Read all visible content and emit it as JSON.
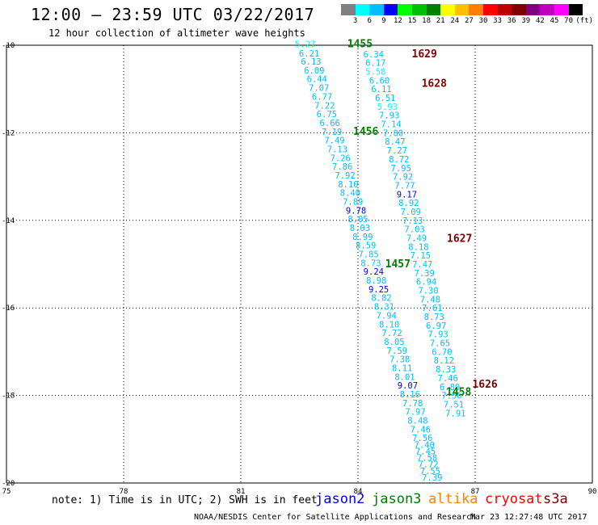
{
  "header": {
    "title": "12:00 – 23:59 UTC 03/22/2017",
    "subtitle": "12 hour collection of altimeter wave heights"
  },
  "colorbar": {
    "unit_label": "(ft)",
    "bins": [
      {
        "label": "3",
        "color": "#808080"
      },
      {
        "label": "6",
        "color": "#00ffff"
      },
      {
        "label": "9",
        "color": "#00bfff"
      },
      {
        "label": "12",
        "color": "#0000ff"
      },
      {
        "label": "15",
        "color": "#00ff00"
      },
      {
        "label": "18",
        "color": "#00bf00"
      },
      {
        "label": "21",
        "color": "#008000"
      },
      {
        "label": "24",
        "color": "#ffff00"
      },
      {
        "label": "27",
        "color": "#ffbf00"
      },
      {
        "label": "30",
        "color": "#ff8000"
      },
      {
        "label": "33",
        "color": "#ff0000"
      },
      {
        "label": "36",
        "color": "#bf0000"
      },
      {
        "label": "39",
        "color": "#800000"
      },
      {
        "label": "42",
        "color": "#800080"
      },
      {
        "label": "45",
        "color": "#bf00bf"
      },
      {
        "label": "70",
        "color": "#ff00ff"
      },
      {
        "label": "",
        "color": "#000000"
      }
    ]
  },
  "note": "note: 1) Time is in UTC; 2) SWH is in feet",
  "satellites": [
    {
      "name": "jason2",
      "color": "#0000ff"
    },
    {
      "name": "jason3",
      "color": "#008000"
    },
    {
      "name": "altika",
      "color": "#ff8000"
    },
    {
      "name": "cryosat",
      "color": "#ff0000"
    },
    {
      "name": "s3a",
      "color": "#800000"
    }
  ],
  "footer": {
    "credit": "NOAA/NESDIS Center for Satellite Applications and Research",
    "timestamp": "Mar 23 12:27:48 UTC 2017"
  },
  "chart_data": {
    "type": "scatter",
    "title": "12:00 – 23:59 UTC 03/22/2017",
    "subtitle": "12 hour collection of altimeter wave heights",
    "xlim": [
      75,
      90
    ],
    "ylim": [
      -20,
      -10
    ],
    "x_ticks": [
      75,
      78,
      81,
      84,
      87,
      90
    ],
    "y_ticks": [
      -10,
      -12,
      -14,
      -16,
      -18,
      -20
    ],
    "grid": true,
    "legend_placement": "bottom",
    "time_labels": [
      {
        "text": "1455",
        "lon": 84.05,
        "lat": -9.97,
        "color": "#008000"
      },
      {
        "text": "1456",
        "lon": 84.2,
        "lat": -11.97,
        "color": "#008000"
      },
      {
        "text": "1457",
        "lon": 85.02,
        "lat": -15.0,
        "color": "#008000"
      },
      {
        "text": "1458",
        "lon": 86.58,
        "lat": -17.92,
        "color": "#008000"
      },
      {
        "text": "1629",
        "lon": 85.7,
        "lat": -10.2,
        "color": "#800000"
      },
      {
        "text": "1628",
        "lon": 85.95,
        "lat": -10.88,
        "color": "#800000"
      },
      {
        "text": "1627",
        "lon": 86.6,
        "lat": -14.42,
        "color": "#800000"
      },
      {
        "text": "1626",
        "lon": 87.25,
        "lat": -17.75,
        "color": "#800000"
      }
    ],
    "series": [
      {
        "name": "jason3",
        "points": [
          {
            "lon": 82.65,
            "lat": -9.97,
            "v": 5.27
          },
          {
            "lon": 82.75,
            "lat": -10.18,
            "v": 6.21
          },
          {
            "lon": 82.8,
            "lat": -10.37,
            "v": 6.13
          },
          {
            "lon": 82.88,
            "lat": -10.57,
            "v": 6.09
          },
          {
            "lon": 82.95,
            "lat": -10.77,
            "v": 6.44
          },
          {
            "lon": 83.0,
            "lat": -10.97,
            "v": 7.07
          },
          {
            "lon": 83.08,
            "lat": -11.17,
            "v": 6.77
          },
          {
            "lon": 83.15,
            "lat": -11.37,
            "v": 7.22
          },
          {
            "lon": 83.2,
            "lat": -11.57,
            "v": 6.75
          },
          {
            "lon": 83.28,
            "lat": -11.77,
            "v": 6.66
          },
          {
            "lon": 83.33,
            "lat": -11.97,
            "v": 7.19
          },
          {
            "lon": 83.4,
            "lat": -12.17,
            "v": 7.49
          },
          {
            "lon": 83.47,
            "lat": -12.37,
            "v": 7.13
          },
          {
            "lon": 83.55,
            "lat": -12.57,
            "v": 7.26
          },
          {
            "lon": 83.6,
            "lat": -12.77,
            "v": 7.86
          },
          {
            "lon": 83.67,
            "lat": -12.97,
            "v": 7.92
          },
          {
            "lon": 83.75,
            "lat": -13.17,
            "v": 8.1
          },
          {
            "lon": 83.8,
            "lat": -13.37,
            "v": 8.4
          },
          {
            "lon": 83.87,
            "lat": -13.57,
            "v": 7.89
          },
          {
            "lon": 83.95,
            "lat": -13.77,
            "v": 9.78
          },
          {
            "lon": 84.0,
            "lat": -13.97,
            "v": 8.05
          },
          {
            "lon": 84.05,
            "lat": -14.17,
            "v": 8.03
          },
          {
            "lon": 84.12,
            "lat": -14.37,
            "v": 8.99
          },
          {
            "lon": 84.2,
            "lat": -14.57,
            "v": 8.59
          },
          {
            "lon": 84.27,
            "lat": -14.77,
            "v": 7.85
          },
          {
            "lon": 84.33,
            "lat": -14.97,
            "v": 8.73
          },
          {
            "lon": 84.4,
            "lat": -15.17,
            "v": 9.24
          },
          {
            "lon": 84.47,
            "lat": -15.37,
            "v": 8.98
          },
          {
            "lon": 84.53,
            "lat": -15.57,
            "v": 9.25
          },
          {
            "lon": 84.6,
            "lat": -15.77,
            "v": 8.82
          },
          {
            "lon": 84.67,
            "lat": -15.97,
            "v": 8.31
          },
          {
            "lon": 84.73,
            "lat": -16.17,
            "v": 7.94
          },
          {
            "lon": 84.8,
            "lat": -16.37,
            "v": 8.1
          },
          {
            "lon": 84.87,
            "lat": -16.57,
            "v": 7.72
          },
          {
            "lon": 84.93,
            "lat": -16.77,
            "v": 8.05
          },
          {
            "lon": 85.0,
            "lat": -16.97,
            "v": 7.59
          },
          {
            "lon": 85.07,
            "lat": -17.17,
            "v": 7.38
          },
          {
            "lon": 85.13,
            "lat": -17.37,
            "v": 8.11
          },
          {
            "lon": 85.2,
            "lat": -17.57,
            "v": 8.01
          },
          {
            "lon": 85.27,
            "lat": -17.77,
            "v": 9.07
          },
          {
            "lon": 85.33,
            "lat": -17.97,
            "v": 8.16
          },
          {
            "lon": 85.4,
            "lat": -18.17,
            "v": 7.78
          },
          {
            "lon": 85.47,
            "lat": -18.37,
            "v": 7.97
          },
          {
            "lon": 85.53,
            "lat": -18.57,
            "v": 8.48
          },
          {
            "lon": 85.6,
            "lat": -18.77,
            "v": 7.46
          },
          {
            "lon": 85.65,
            "lat": -18.97,
            "v": 7.56
          },
          {
            "lon": 85.7,
            "lat": -19.12,
            "v": 7.4
          },
          {
            "lon": 85.73,
            "lat": -19.27,
            "v": 7.45
          },
          {
            "lon": 85.77,
            "lat": -19.42,
            "v": 7.58
          },
          {
            "lon": 85.8,
            "lat": -19.57,
            "v": 7.72
          },
          {
            "lon": 85.85,
            "lat": -19.72,
            "v": 7.55
          },
          {
            "lon": 85.9,
            "lat": -19.87,
            "v": 7.39
          }
        ]
      },
      {
        "name": "s3a",
        "points": [
          {
            "lon": 84.4,
            "lat": -10.2,
            "v": 6.34
          },
          {
            "lon": 84.45,
            "lat": -10.4,
            "v": 6.17
          },
          {
            "lon": 84.45,
            "lat": -10.6,
            "v": 5.58
          },
          {
            "lon": 84.55,
            "lat": -10.8,
            "v": 6.6
          },
          {
            "lon": 84.6,
            "lat": -11.0,
            "v": 6.11
          },
          {
            "lon": 84.7,
            "lat": -11.2,
            "v": 6.51
          },
          {
            "lon": 84.75,
            "lat": -11.4,
            "v": 5.93
          },
          {
            "lon": 84.8,
            "lat": -11.6,
            "v": 7.93
          },
          {
            "lon": 84.85,
            "lat": -11.8,
            "v": 7.14
          },
          {
            "lon": 84.9,
            "lat": -12.0,
            "v": 7.8
          },
          {
            "lon": 84.95,
            "lat": -12.2,
            "v": 8.47
          },
          {
            "lon": 85.0,
            "lat": -12.4,
            "v": 7.27
          },
          {
            "lon": 85.05,
            "lat": -12.6,
            "v": 8.72
          },
          {
            "lon": 85.1,
            "lat": -12.8,
            "v": 7.95
          },
          {
            "lon": 85.15,
            "lat": -13.0,
            "v": 7.92
          },
          {
            "lon": 85.2,
            "lat": -13.2,
            "v": 7.77
          },
          {
            "lon": 85.25,
            "lat": -13.4,
            "v": 9.17
          },
          {
            "lon": 85.3,
            "lat": -13.6,
            "v": 8.92
          },
          {
            "lon": 85.35,
            "lat": -13.8,
            "v": 7.09
          },
          {
            "lon": 85.4,
            "lat": -14.0,
            "v": 7.13
          },
          {
            "lon": 85.45,
            "lat": -14.2,
            "v": 7.03
          },
          {
            "lon": 85.5,
            "lat": -14.4,
            "v": 7.49
          },
          {
            "lon": 85.55,
            "lat": -14.6,
            "v": 8.18
          },
          {
            "lon": 85.6,
            "lat": -14.8,
            "v": 7.15
          },
          {
            "lon": 85.65,
            "lat": -15.0,
            "v": 7.47
          },
          {
            "lon": 85.7,
            "lat": -15.2,
            "v": 7.39
          },
          {
            "lon": 85.75,
            "lat": -15.4,
            "v": 6.94
          },
          {
            "lon": 85.8,
            "lat": -15.6,
            "v": 7.3
          },
          {
            "lon": 85.85,
            "lat": -15.8,
            "v": 7.48
          },
          {
            "lon": 85.9,
            "lat": -16.0,
            "v": 7.61
          },
          {
            "lon": 85.95,
            "lat": -16.2,
            "v": 8.73
          },
          {
            "lon": 86.0,
            "lat": -16.4,
            "v": 6.97
          },
          {
            "lon": 86.05,
            "lat": -16.6,
            "v": 7.93
          },
          {
            "lon": 86.1,
            "lat": -16.8,
            "v": 7.65
          },
          {
            "lon": 86.15,
            "lat": -17.0,
            "v": 6.7
          },
          {
            "lon": 86.2,
            "lat": -17.2,
            "v": 8.12
          },
          {
            "lon": 86.25,
            "lat": -17.4,
            "v": 8.33
          },
          {
            "lon": 86.3,
            "lat": -17.6,
            "v": 7.46
          },
          {
            "lon": 86.35,
            "lat": -17.8,
            "v": 6.8
          },
          {
            "lon": 86.4,
            "lat": -18.0,
            "v": 7.56
          },
          {
            "lon": 86.45,
            "lat": -18.2,
            "v": 7.51
          },
          {
            "lon": 86.5,
            "lat": -18.4,
            "v": 7.91
          }
        ]
      }
    ]
  }
}
